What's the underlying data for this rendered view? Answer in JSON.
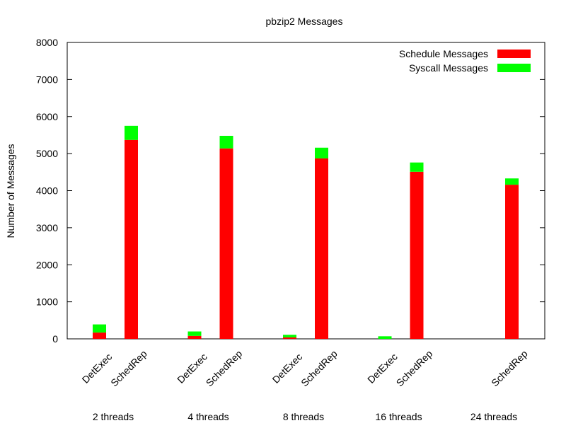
{
  "chart_data": {
    "type": "bar",
    "stacked": true,
    "title": "pbzip2 Messages",
    "xlabel": "",
    "ylabel": "Number of Messages",
    "ylim": [
      0,
      8000
    ],
    "yticks": [
      "0",
      "1000",
      "2000",
      "3000",
      "4000",
      "5000",
      "6000",
      "7000",
      "8000"
    ],
    "grid": false,
    "legend_position": "top-right",
    "groups": [
      "2 threads",
      "4 threads",
      "8 threads",
      "16 threads",
      "24 threads"
    ],
    "bar_labels": [
      "DetExec",
      "SchedRep"
    ],
    "series": [
      {
        "name": "Schedule Messages",
        "color": "#ff0000",
        "values": {
          "DetExec": [
            170,
            80,
            40,
            0,
            null
          ],
          "SchedRep": [
            5370,
            5140,
            4870,
            4510,
            4160
          ]
        }
      },
      {
        "name": "Syscall Messages",
        "color": "#00ff00",
        "values": {
          "DetExec": [
            220,
            120,
            70,
            70,
            null
          ],
          "SchedRep": [
            380,
            340,
            290,
            250,
            170
          ]
        }
      }
    ]
  }
}
